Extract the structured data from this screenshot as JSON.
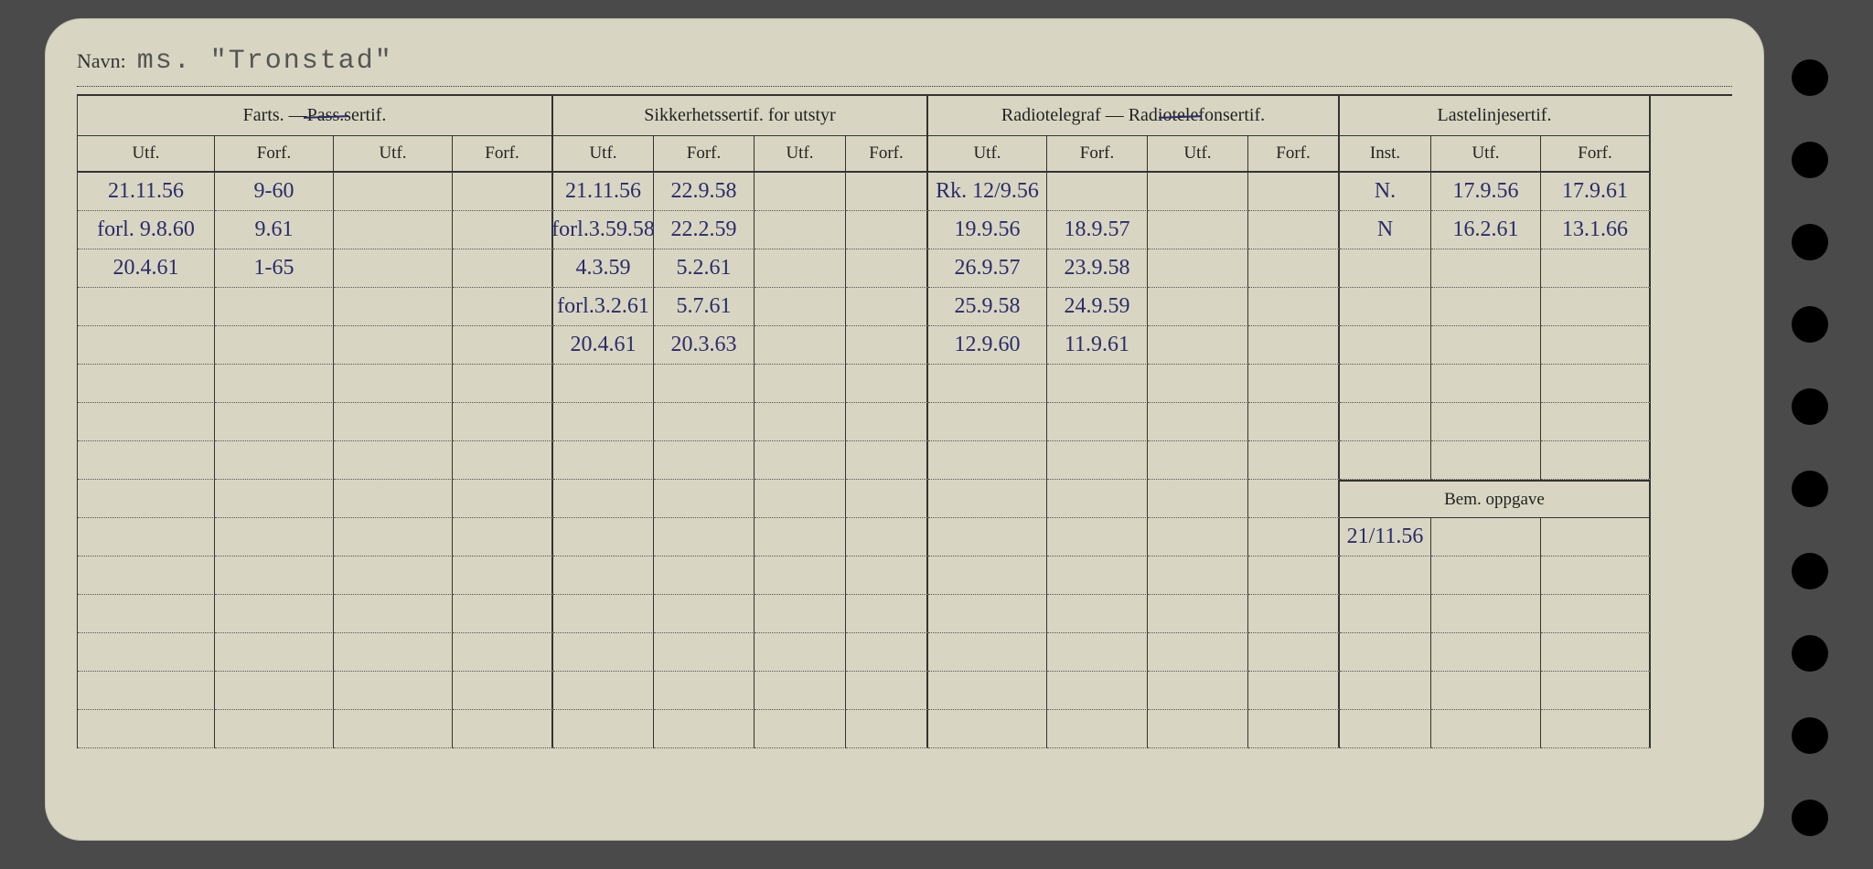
{
  "colors": {
    "card_bg": "#d8d6c2",
    "page_bg": "#4a4a4a",
    "ink": "#2b2b6b",
    "print": "#222222",
    "dotted": "#555555"
  },
  "navn": {
    "label": "Navn:",
    "value": "ms. \"Tronstad\""
  },
  "groups": {
    "farts": {
      "pre": "Farts. — ",
      "strike": "Pass.",
      "post": "sertif."
    },
    "sikk": "Sikkerhetssertif. for utstyr",
    "radio": {
      "pre": "Radiotelegraf — Radi",
      "strike": "otele",
      "post": "fonsertif."
    },
    "laste": "Lastelinjesertif.",
    "bem": "Bem. oppgave"
  },
  "sub": {
    "utf": "Utf.",
    "forf": "Forf.",
    "inst": "Inst."
  },
  "rows": [
    {
      "f_utf": "21.11.56",
      "f_forf": "9-60",
      "f_utf2": "",
      "f_forf2": "",
      "s_utf": "21.11.56",
      "s_forf": "22.9.58",
      "s_utf2": "",
      "s_forf2": "",
      "r_utf": "Rk. 12/9.56",
      "r_forf": "",
      "r_utf2": "",
      "r_forf2": "",
      "l_inst": "N.",
      "l_utf": "17.9.56",
      "l_forf": "17.9.61"
    },
    {
      "f_utf": "forl. 9.8.60",
      "f_forf": "9.61",
      "f_utf2": "",
      "f_forf2": "",
      "s_utf": "forl.3.59.58",
      "s_forf": "22.2.59",
      "s_utf2": "",
      "s_forf2": "",
      "r_utf": "19.9.56",
      "r_forf": "18.9.57",
      "r_utf2": "",
      "r_forf2": "",
      "l_inst": "N",
      "l_utf": "16.2.61",
      "l_forf": "13.1.66"
    },
    {
      "f_utf": "20.4.61",
      "f_forf": "1-65",
      "f_utf2": "",
      "f_forf2": "",
      "s_utf": "4.3.59",
      "s_forf": "5.2.61",
      "s_utf2": "",
      "s_forf2": "",
      "r_utf": "26.9.57",
      "r_forf": "23.9.58",
      "r_utf2": "",
      "r_forf2": "",
      "l_inst": "",
      "l_utf": "",
      "l_forf": ""
    },
    {
      "f_utf": "",
      "f_forf": "",
      "f_utf2": "",
      "f_forf2": "",
      "s_utf": "forl.3.2.61",
      "s_forf": "5.7.61",
      "s_utf2": "",
      "s_forf2": "",
      "r_utf": "25.9.58",
      "r_forf": "24.9.59",
      "r_utf2": "",
      "r_forf2": "",
      "l_inst": "",
      "l_utf": "",
      "l_forf": ""
    },
    {
      "f_utf": "",
      "f_forf": "",
      "f_utf2": "",
      "f_forf2": "",
      "s_utf": "20.4.61",
      "s_forf": "20.3.63",
      "s_utf2": "",
      "s_forf2": "",
      "r_utf": "12.9.60",
      "r_forf": "11.9.61",
      "r_utf2": "",
      "r_forf2": "",
      "l_inst": "",
      "l_utf": "",
      "l_forf": ""
    },
    {
      "f_utf": "",
      "f_forf": "",
      "f_utf2": "",
      "f_forf2": "",
      "s_utf": "",
      "s_forf": "",
      "s_utf2": "",
      "s_forf2": "",
      "r_utf": "",
      "r_forf": "",
      "r_utf2": "",
      "r_forf2": "",
      "l_inst": "",
      "l_utf": "",
      "l_forf": ""
    },
    {
      "f_utf": "",
      "f_forf": "",
      "f_utf2": "",
      "f_forf2": "",
      "s_utf": "",
      "s_forf": "",
      "s_utf2": "",
      "s_forf2": "",
      "r_utf": "",
      "r_forf": "",
      "r_utf2": "",
      "r_forf2": "",
      "l_inst": "",
      "l_utf": "",
      "l_forf": ""
    },
    {
      "f_utf": "",
      "f_forf": "",
      "f_utf2": "",
      "f_forf2": "",
      "s_utf": "",
      "s_forf": "",
      "s_utf2": "",
      "s_forf2": "",
      "r_utf": "",
      "r_forf": "",
      "r_utf2": "",
      "r_forf2": "",
      "l_inst": "",
      "l_utf": "",
      "l_forf": ""
    }
  ],
  "bem_rows": [
    {
      "a": "21/11.56",
      "b": "",
      "c": ""
    },
    {
      "a": "",
      "b": "",
      "c": ""
    },
    {
      "a": "",
      "b": "",
      "c": ""
    },
    {
      "a": "",
      "b": "",
      "c": ""
    },
    {
      "a": "",
      "b": "",
      "c": ""
    },
    {
      "a": "",
      "b": "",
      "c": ""
    }
  ],
  "lower_rows": 6
}
